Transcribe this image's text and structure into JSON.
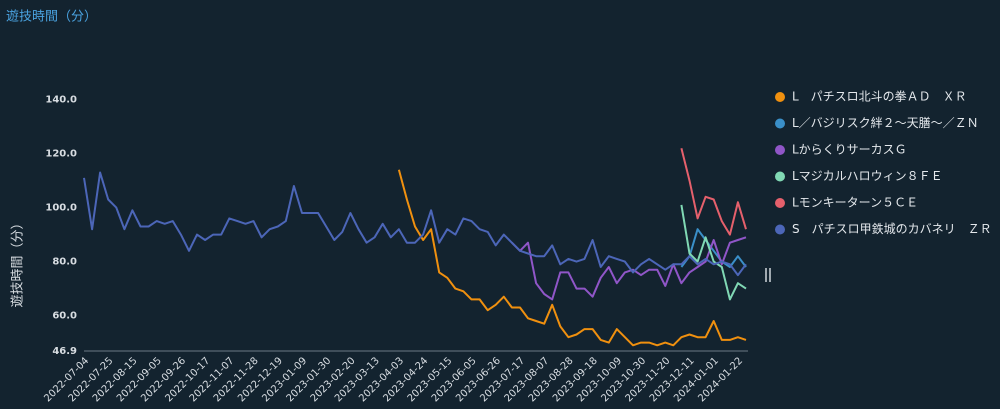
{
  "chart_data": {
    "type": "line",
    "title": "遊技時間（分）",
    "y_label": "遊技時間（分）",
    "categories": [
      "2022-07-04",
      null,
      null,
      "2022-07-25",
      null,
      null,
      "2022-08-15",
      null,
      null,
      "2022-09-05",
      null,
      null,
      "2022-09-26",
      null,
      null,
      "2022-10-17",
      null,
      null,
      "2022-11-07",
      null,
      null,
      "2022-11-28",
      null,
      null,
      "2022-12-19",
      null,
      null,
      "2023-01-09",
      null,
      null,
      "2023-01-30",
      null,
      null,
      "2023-02-20",
      null,
      null,
      "2023-03-13",
      null,
      null,
      "2023-04-03",
      null,
      null,
      "2023-04-24",
      null,
      null,
      "2023-05-15",
      null,
      null,
      "2023-06-05",
      null,
      null,
      "2023-06-26",
      null,
      null,
      "2023-07-17",
      null,
      null,
      "2023-08-07",
      null,
      null,
      "2023-08-28",
      null,
      null,
      "2023-09-18",
      null,
      null,
      "2023-10-09",
      null,
      null,
      "2023-10-30",
      null,
      null,
      "2023-11-20",
      null,
      null,
      "2023-12-11",
      null,
      null,
      "2024-01-01",
      null,
      null,
      "2024-01-22",
      null
    ],
    "series": [
      {
        "name": "L　パチスロ北斗の拳ＡＤ　ＸＲ",
        "color": "#f0900f",
        "values": [
          null,
          null,
          null,
          null,
          null,
          null,
          null,
          null,
          null,
          null,
          null,
          null,
          null,
          null,
          null,
          null,
          null,
          null,
          null,
          null,
          null,
          null,
          null,
          null,
          null,
          null,
          null,
          null,
          null,
          null,
          null,
          null,
          null,
          null,
          null,
          null,
          null,
          null,
          null,
          114,
          103,
          93,
          88,
          92,
          76,
          74,
          70,
          69,
          66,
          66,
          62,
          64,
          67,
          63,
          63,
          59,
          58,
          57,
          64,
          56,
          52,
          53,
          55,
          55,
          51,
          50,
          55,
          52,
          49,
          50,
          50,
          49,
          50,
          49,
          52,
          53,
          52,
          52,
          58,
          51,
          51,
          52,
          51
        ]
      },
      {
        "name": "L／バジリスク絆２～天膳～／ＺＮ",
        "color": "#3a8fc8",
        "values": [
          null,
          null,
          null,
          null,
          null,
          null,
          null,
          null,
          null,
          null,
          null,
          null,
          null,
          null,
          null,
          null,
          null,
          null,
          null,
          null,
          null,
          null,
          null,
          null,
          null,
          null,
          null,
          null,
          null,
          null,
          null,
          null,
          null,
          null,
          null,
          null,
          null,
          null,
          null,
          null,
          null,
          null,
          null,
          null,
          null,
          null,
          null,
          null,
          null,
          null,
          null,
          null,
          null,
          null,
          null,
          null,
          null,
          null,
          null,
          null,
          null,
          null,
          null,
          null,
          null,
          null,
          null,
          null,
          null,
          null,
          null,
          null,
          null,
          null,
          78,
          82,
          92,
          88,
          84,
          80,
          78,
          82,
          78
        ]
      },
      {
        "name": "LからくりサーカスＧ",
        "color": "#9056c8",
        "values": [
          null,
          null,
          null,
          null,
          null,
          null,
          null,
          null,
          null,
          null,
          null,
          null,
          null,
          null,
          null,
          null,
          null,
          null,
          null,
          null,
          null,
          null,
          null,
          null,
          null,
          null,
          null,
          null,
          null,
          null,
          null,
          null,
          null,
          null,
          null,
          null,
          null,
          null,
          null,
          null,
          null,
          null,
          null,
          null,
          null,
          null,
          null,
          null,
          null,
          null,
          null,
          null,
          null,
          87,
          84,
          87,
          72,
          68,
          66,
          76,
          76,
          70,
          70,
          67,
          74,
          78,
          72,
          76,
          77,
          75,
          77,
          77,
          71,
          79,
          72,
          76,
          78,
          80,
          88,
          79,
          87,
          88,
          89
        ]
      },
      {
        "name": "Lマジカルハロウィン８ＦＥ",
        "color": "#80d8b4",
        "values": [
          null,
          null,
          null,
          null,
          null,
          null,
          null,
          null,
          null,
          null,
          null,
          null,
          null,
          null,
          null,
          null,
          null,
          null,
          null,
          null,
          null,
          null,
          null,
          null,
          null,
          null,
          null,
          null,
          null,
          null,
          null,
          null,
          null,
          null,
          null,
          null,
          null,
          null,
          null,
          null,
          null,
          null,
          null,
          null,
          null,
          null,
          null,
          null,
          null,
          null,
          null,
          null,
          null,
          null,
          null,
          null,
          null,
          null,
          null,
          null,
          null,
          null,
          null,
          null,
          null,
          null,
          null,
          null,
          null,
          null,
          null,
          null,
          null,
          null,
          101,
          83,
          80,
          89,
          80,
          78,
          66,
          72,
          70
        ]
      },
      {
        "name": "Lモンキーターン５ＣＥ",
        "color": "#e5606c",
        "values": [
          null,
          null,
          null,
          null,
          null,
          null,
          null,
          null,
          null,
          null,
          null,
          null,
          null,
          null,
          null,
          null,
          null,
          null,
          null,
          null,
          null,
          null,
          null,
          null,
          null,
          null,
          null,
          null,
          null,
          null,
          null,
          null,
          null,
          null,
          null,
          null,
          null,
          null,
          null,
          null,
          null,
          null,
          null,
          null,
          null,
          null,
          null,
          null,
          null,
          null,
          null,
          null,
          null,
          null,
          null,
          null,
          null,
          null,
          null,
          null,
          null,
          null,
          null,
          null,
          null,
          null,
          null,
          null,
          null,
          null,
          null,
          null,
          null,
          null,
          122,
          110,
          96,
          104,
          103,
          95,
          90,
          102,
          92
        ]
      },
      {
        "name": "S　パチスロ甲鉄城のカバネリ　ＺＲ",
        "color": "#4c66b8",
        "values": [
          111,
          92,
          113,
          103,
          100,
          92,
          99,
          93,
          93,
          95,
          94,
          95,
          90,
          84,
          90,
          88,
          90,
          90,
          96,
          95,
          94,
          95,
          89,
          92,
          93,
          95,
          108,
          98,
          98,
          98,
          93,
          88,
          91,
          98,
          92,
          87,
          89,
          94,
          89,
          92,
          87,
          87,
          90,
          99,
          87,
          92,
          90,
          96,
          95,
          92,
          91,
          86,
          90,
          87,
          84,
          83,
          82,
          82,
          86,
          79,
          81,
          80,
          81,
          88,
          78,
          82,
          81,
          80,
          76,
          79,
          81,
          79,
          77,
          79,
          79,
          82,
          79,
          81,
          79,
          80,
          79,
          75,
          79
        ]
      }
    ],
    "ylim": [
      46.9,
      147
    ],
    "yticks": [
      {
        "value": 46.9,
        "label": "46.9"
      },
      {
        "value": 60,
        "label": "60.0"
      },
      {
        "value": 80,
        "label": "80.0"
      },
      {
        "value": 100,
        "label": "100.0"
      },
      {
        "value": 120,
        "label": "120.0"
      },
      {
        "value": 140,
        "label": "140.0"
      }
    ],
    "grid": false,
    "legend": "right"
  }
}
